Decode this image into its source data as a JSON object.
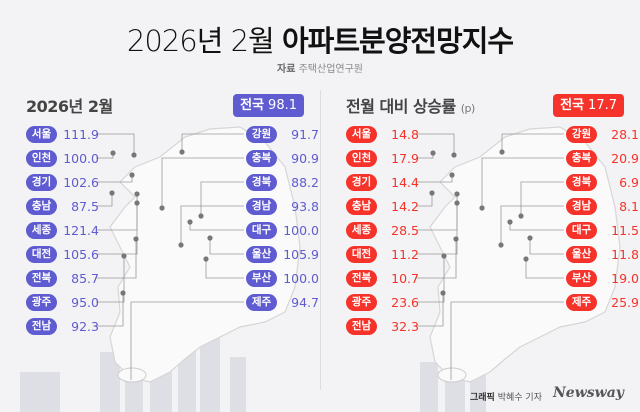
{
  "title": {
    "light": "2026년 2월",
    "bold": "아파트분양전망지수"
  },
  "source": {
    "label": "자료",
    "value": "주택산업연구원"
  },
  "colors": {
    "index": "#5f5bd0",
    "change": "#f5332a"
  },
  "left_panel": {
    "title": "2026년 2월",
    "total_label": "전국",
    "total_value": "98.1",
    "left_regions": [
      {
        "name": "서울",
        "value": "111.9"
      },
      {
        "name": "인천",
        "value": "100.0"
      },
      {
        "name": "경기",
        "value": "102.6"
      },
      {
        "name": "충남",
        "value": "87.5"
      },
      {
        "name": "세종",
        "value": "121.4"
      },
      {
        "name": "대전",
        "value": "105.6"
      },
      {
        "name": "전북",
        "value": "85.7"
      },
      {
        "name": "광주",
        "value": "95.0"
      },
      {
        "name": "전남",
        "value": "92.3"
      }
    ],
    "right_regions": [
      {
        "name": "강원",
        "value": "91.7"
      },
      {
        "name": "충북",
        "value": "90.9"
      },
      {
        "name": "경북",
        "value": "88.2"
      },
      {
        "name": "경남",
        "value": "93.8"
      },
      {
        "name": "대구",
        "value": "100.0"
      },
      {
        "name": "울산",
        "value": "105.9"
      },
      {
        "name": "부산",
        "value": "100.0"
      },
      {
        "name": "제주",
        "value": "94.7"
      }
    ]
  },
  "right_panel": {
    "title": "전월 대비 상승률",
    "unit": "(p)",
    "total_label": "전국",
    "total_value": "17.7",
    "left_regions": [
      {
        "name": "서울",
        "value": "14.8"
      },
      {
        "name": "인천",
        "value": "17.9"
      },
      {
        "name": "경기",
        "value": "14.4"
      },
      {
        "name": "충남",
        "value": "14.2"
      },
      {
        "name": "세종",
        "value": "28.5"
      },
      {
        "name": "대전",
        "value": "11.2"
      },
      {
        "name": "전북",
        "value": "10.7"
      },
      {
        "name": "광주",
        "value": "23.6"
      },
      {
        "name": "전남",
        "value": "32.3"
      }
    ],
    "right_regions": [
      {
        "name": "강원",
        "value": "28.1"
      },
      {
        "name": "충북",
        "value": "20.9"
      },
      {
        "name": "경북",
        "value": "6.9"
      },
      {
        "name": "경남",
        "value": "8.1"
      },
      {
        "name": "대구",
        "value": "11.5"
      },
      {
        "name": "울산",
        "value": "11.8"
      },
      {
        "name": "부산",
        "value": "19.0"
      },
      {
        "name": "제주",
        "value": "25.9"
      }
    ]
  },
  "credit": {
    "label": "그래픽",
    "value": "박혜수 기자"
  },
  "logo": "Newsway"
}
